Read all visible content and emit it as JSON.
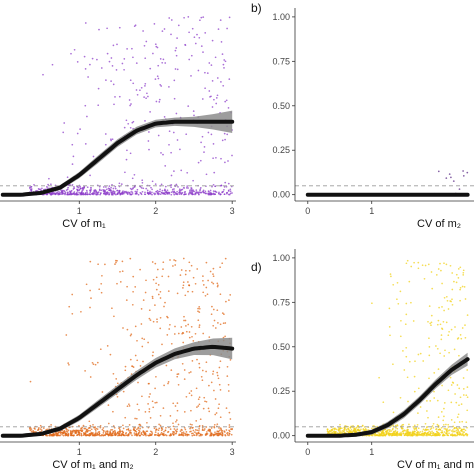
{
  "colors": {
    "background": "#ffffff",
    "curve": "#111111",
    "ribbon": "#8c8c8c",
    "threshold_line": "#9a9a9a",
    "axis_line": "#333333",
    "panel_a_points": "#8e3fc9",
    "panel_b_points": "#5b2a86",
    "panel_c_points": "#e06a1b",
    "panel_d_points": "#f2d21b"
  },
  "chart_data": [
    {
      "id": "a",
      "panel_label": "",
      "type": "scatter",
      "xlabel": "CV of m₁",
      "ylabel": "",
      "xlim": [
        -0.05,
        3.05
      ],
      "ylim": [
        -0.03,
        1.05
      ],
      "xticks": [
        1,
        2,
        3
      ],
      "xticklabels": [
        "1",
        "2",
        "3"
      ],
      "yticks": [],
      "threshold": 0.05,
      "point_color": "#8e3fc9",
      "fit": {
        "x": [
          0,
          0.25,
          0.5,
          0.75,
          1.0,
          1.25,
          1.5,
          1.75,
          2.0,
          2.25,
          2.5,
          2.75,
          3.0
        ],
        "y": [
          0.0,
          0.0,
          0.01,
          0.04,
          0.11,
          0.2,
          0.29,
          0.36,
          0.4,
          0.41,
          0.41,
          0.41,
          0.41
        ],
        "band_halfwidth": [
          0.005,
          0.005,
          0.006,
          0.008,
          0.01,
          0.012,
          0.012,
          0.012,
          0.012,
          0.013,
          0.016,
          0.024,
          0.035
        ]
      }
    },
    {
      "id": "b",
      "panel_label": "b)",
      "type": "scatter",
      "xlabel": "CV of m₂",
      "ylabel": "",
      "xlim": [
        -0.2,
        2.6
      ],
      "ylim": [
        -0.03,
        1.05
      ],
      "xticks": [
        0,
        1
      ],
      "xticklabels": [
        "0",
        "1"
      ],
      "yticks": [
        0,
        0.25,
        0.5,
        0.75,
        1.0
      ],
      "yticklabels": [
        "0.00",
        "0.25",
        "0.50",
        "0.75",
        "1.00"
      ],
      "threshold": 0.05,
      "point_color": "#5b2a86",
      "fit": {
        "x": [
          0,
          0.25,
          0.5,
          0.75,
          1.0,
          1.25,
          1.5,
          1.75,
          2.0,
          2.25,
          2.5
        ],
        "y": [
          0.0,
          0.0,
          0.0,
          0.0,
          0.0,
          0.0,
          0.0,
          0.0,
          0.0,
          0.0,
          0.0
        ],
        "band_halfwidth": [
          0.003,
          0.003,
          0.003,
          0.003,
          0.003,
          0.003,
          0.003,
          0.003,
          0.003,
          0.003,
          0.003
        ]
      }
    },
    {
      "id": "c",
      "panel_label": "",
      "type": "scatter",
      "xlabel": "CV of m₁ and m₂",
      "ylabel": "",
      "xlim": [
        -0.05,
        3.05
      ],
      "ylim": [
        -0.03,
        1.05
      ],
      "xticks": [
        1,
        2,
        3
      ],
      "xticklabels": [
        "1",
        "2",
        "3"
      ],
      "yticks": [],
      "threshold": 0.05,
      "point_color": "#e06a1b",
      "fit": {
        "x": [
          0,
          0.25,
          0.5,
          0.75,
          1.0,
          1.25,
          1.5,
          1.75,
          2.0,
          2.25,
          2.5,
          2.75,
          3.0
        ],
        "y": [
          0.0,
          0.0,
          0.01,
          0.04,
          0.1,
          0.18,
          0.26,
          0.34,
          0.41,
          0.46,
          0.49,
          0.5,
          0.49
        ],
        "band_halfwidth": [
          0.006,
          0.006,
          0.006,
          0.008,
          0.01,
          0.012,
          0.013,
          0.014,
          0.015,
          0.017,
          0.02,
          0.026,
          0.034
        ]
      }
    },
    {
      "id": "d",
      "panel_label": "d)",
      "type": "scatter",
      "xlabel": "CV of m₁ and m",
      "ylabel": "",
      "xlim": [
        -0.2,
        2.6
      ],
      "ylim": [
        -0.03,
        1.05
      ],
      "xticks": [
        0,
        1
      ],
      "xticklabels": [
        "0",
        "1"
      ],
      "yticks": [
        0,
        0.25,
        0.5,
        0.75,
        1.0
      ],
      "yticklabels": [
        "0.00",
        "0.25",
        "0.50",
        "0.75",
        "1.00"
      ],
      "threshold": 0.05,
      "point_color": "#f2d21b",
      "fit": {
        "x": [
          0,
          0.25,
          0.5,
          0.75,
          1.0,
          1.25,
          1.5,
          1.75,
          2.0,
          2.25,
          2.5
        ],
        "y": [
          0.0,
          0.0,
          0.0,
          0.005,
          0.02,
          0.06,
          0.12,
          0.2,
          0.29,
          0.37,
          0.43
        ],
        "band_halfwidth": [
          0.005,
          0.005,
          0.005,
          0.006,
          0.008,
          0.01,
          0.012,
          0.013,
          0.014,
          0.016,
          0.02
        ]
      }
    }
  ]
}
